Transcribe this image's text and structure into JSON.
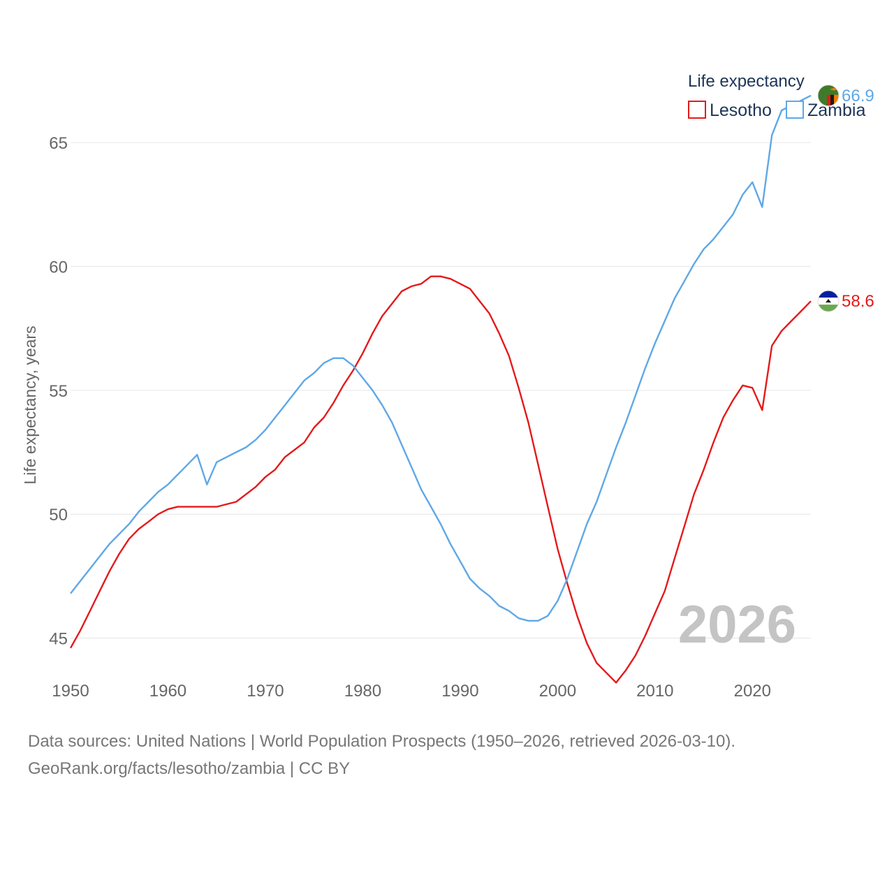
{
  "chart_data": {
    "type": "line",
    "title": "",
    "xlabel": "",
    "ylabel": "Life expectancy, years",
    "xlim": [
      1950,
      2026
    ],
    "ylim": [
      42,
      68.5
    ],
    "x_ticks": [
      1950,
      1960,
      1970,
      1980,
      1990,
      2000,
      2010,
      2020
    ],
    "y_ticks": [
      45,
      50,
      55,
      60,
      65
    ],
    "grid": "horizontal",
    "legend": {
      "title": "Life expectancy",
      "position": "top-right"
    },
    "year_stamp": "2026",
    "x": [
      1950,
      1951,
      1952,
      1953,
      1954,
      1955,
      1956,
      1957,
      1958,
      1959,
      1960,
      1961,
      1962,
      1963,
      1964,
      1965,
      1966,
      1967,
      1968,
      1969,
      1970,
      1971,
      1972,
      1973,
      1974,
      1975,
      1976,
      1977,
      1978,
      1979,
      1980,
      1981,
      1982,
      1983,
      1984,
      1985,
      1986,
      1987,
      1988,
      1989,
      1990,
      1991,
      1992,
      1993,
      1994,
      1995,
      1996,
      1997,
      1998,
      1999,
      2000,
      2001,
      2002,
      2003,
      2004,
      2005,
      2006,
      2007,
      2008,
      2009,
      2010,
      2011,
      2012,
      2013,
      2014,
      2015,
      2016,
      2017,
      2018,
      2019,
      2020,
      2021,
      2022,
      2023,
      2024,
      2025,
      2026
    ],
    "series": [
      {
        "name": "Lesotho",
        "color": "#e41a1c",
        "end_label": "58.6",
        "values": [
          44.6,
          45.3,
          46.1,
          46.9,
          47.7,
          48.4,
          49.0,
          49.4,
          49.7,
          50.0,
          50.2,
          50.3,
          50.3,
          50.3,
          50.3,
          50.3,
          50.4,
          50.5,
          50.8,
          51.1,
          51.5,
          51.8,
          52.3,
          52.6,
          52.9,
          53.5,
          53.9,
          54.5,
          55.2,
          55.8,
          56.5,
          57.3,
          58.0,
          58.5,
          59.0,
          59.2,
          59.3,
          59.6,
          59.6,
          59.5,
          59.3,
          59.1,
          58.6,
          58.1,
          57.3,
          56.4,
          55.1,
          53.7,
          52.0,
          50.3,
          48.6,
          47.2,
          45.9,
          44.8,
          44.0,
          43.6,
          43.2,
          43.7,
          44.3,
          45.1,
          46.0,
          46.9,
          48.2,
          49.5,
          50.8,
          51.8,
          52.9,
          53.9,
          54.6,
          55.2,
          55.1,
          54.2,
          56.8,
          57.4,
          57.8,
          58.2,
          58.6
        ]
      },
      {
        "name": "Zambia",
        "color": "#5fa8e6",
        "end_label": "66.9",
        "values": [
          46.8,
          47.3,
          47.8,
          48.3,
          48.8,
          49.2,
          49.6,
          50.1,
          50.5,
          50.9,
          51.2,
          51.6,
          52.0,
          52.4,
          51.2,
          52.1,
          52.3,
          52.5,
          52.7,
          53.0,
          53.4,
          53.9,
          54.4,
          54.9,
          55.4,
          55.7,
          56.1,
          56.3,
          56.3,
          56.0,
          55.5,
          55.0,
          54.4,
          53.7,
          52.8,
          51.9,
          51.0,
          50.3,
          49.6,
          48.8,
          48.1,
          47.4,
          47.0,
          46.7,
          46.3,
          46.1,
          45.8,
          45.7,
          45.7,
          45.9,
          46.5,
          47.4,
          48.5,
          49.6,
          50.5,
          51.6,
          52.7,
          53.7,
          54.8,
          55.9,
          56.9,
          57.8,
          58.7,
          59.4,
          60.1,
          60.7,
          61.1,
          61.6,
          62.1,
          62.9,
          63.4,
          62.4,
          65.3,
          66.3,
          66.5,
          66.7,
          66.9
        ]
      }
    ],
    "sources": "Data sources: United Nations | World Population Prospects (1950–2026, retrieved 2026-03-10).",
    "credit": "GeoRank.org/facts/lesotho/zambia | CC BY"
  }
}
